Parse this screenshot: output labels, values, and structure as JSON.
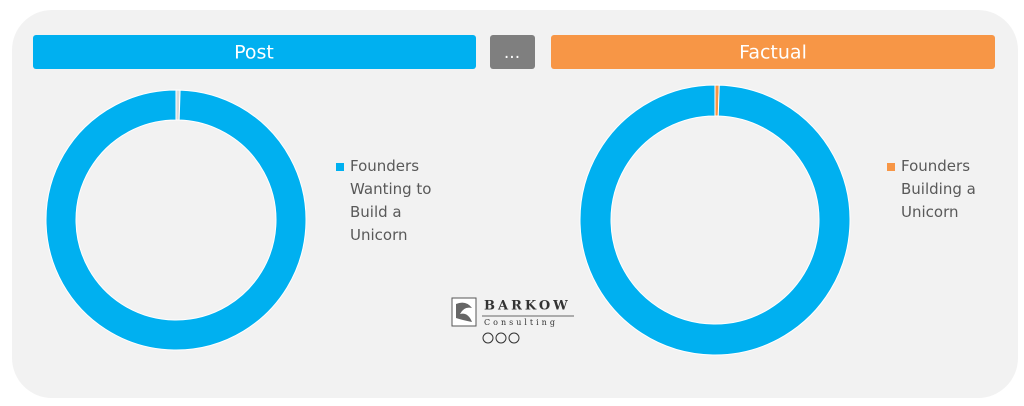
{
  "headers": {
    "left": "Post",
    "middle": "...",
    "right": "Factual"
  },
  "logo": {
    "name": "BARKOW",
    "sub": "Consulting"
  },
  "chart_data": [
    {
      "type": "donut",
      "categories": [
        null,
        "Founders Wanting to Build a Unicorn"
      ],
      "values": [
        0.5,
        99.5
      ],
      "colors": [
        "#d9d9d9",
        "#00b0f0"
      ]
    },
    {
      "type": "donut",
      "categories": [
        "Founders Building a Unicorn",
        null
      ],
      "values": [
        0.5,
        99.5
      ],
      "colors": [
        "#f79646",
        "#00b0f0"
      ]
    }
  ]
}
